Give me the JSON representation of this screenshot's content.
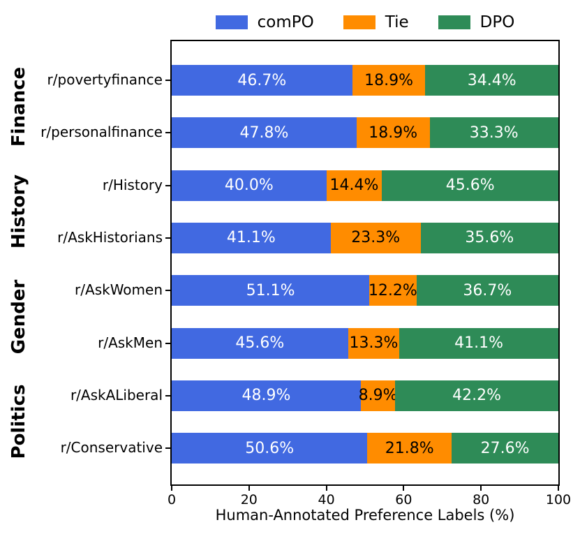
{
  "chart_data": {
    "type": "bar",
    "orientation": "horizontal",
    "stacked": true,
    "xlabel": "Human-Annotated Preference Labels (%)",
    "xlim": [
      0,
      100
    ],
    "xticks": [
      "0",
      "20",
      "40",
      "60",
      "80",
      "100"
    ],
    "xtick_values": [
      0,
      20,
      40,
      60,
      80,
      100
    ],
    "grid": false,
    "legend_position": "top-center",
    "categories": [
      "r/povertyfinance",
      "r/personalfinance",
      "r/History",
      "r/AskHistorians",
      "r/AskWomen",
      "r/AskMen",
      "r/AskALiberal",
      "r/Conservative"
    ],
    "groups": [
      {
        "label": "Finance",
        "rows": [
          0,
          1
        ]
      },
      {
        "label": "History",
        "rows": [
          2,
          3
        ]
      },
      {
        "label": "Gender",
        "rows": [
          4,
          5
        ]
      },
      {
        "label": "Politics",
        "rows": [
          6,
          7
        ]
      }
    ],
    "series": [
      {
        "name": "comPO",
        "color": "#4169E1",
        "label_color": "#ffffff",
        "values": [
          46.7,
          47.8,
          40.0,
          41.1,
          51.1,
          45.6,
          48.9,
          50.6
        ],
        "labels": [
          "46.7%",
          "47.8%",
          "40.0%",
          "41.1%",
          "51.1%",
          "45.6%",
          "48.9%",
          "50.6%"
        ]
      },
      {
        "name": "Tie",
        "color": "#FF8C00",
        "label_color": "#000000",
        "values": [
          18.9,
          18.9,
          14.4,
          23.3,
          12.2,
          13.3,
          8.9,
          21.8
        ],
        "labels": [
          "18.9%",
          "18.9%",
          "14.4%",
          "23.3%",
          "12.2%",
          "13.3%",
          "8.9%",
          "21.8%"
        ]
      },
      {
        "name": "DPO",
        "color": "#2E8B57",
        "label_color": "#ffffff",
        "values": [
          34.4,
          33.3,
          45.6,
          35.6,
          36.7,
          41.1,
          42.2,
          27.6
        ],
        "labels": [
          "34.4%",
          "33.3%",
          "45.6%",
          "35.6%",
          "36.7%",
          "41.1%",
          "42.2%",
          "27.6%"
        ]
      }
    ],
    "axis_color": "#000000",
    "background_color": "#ffffff"
  }
}
